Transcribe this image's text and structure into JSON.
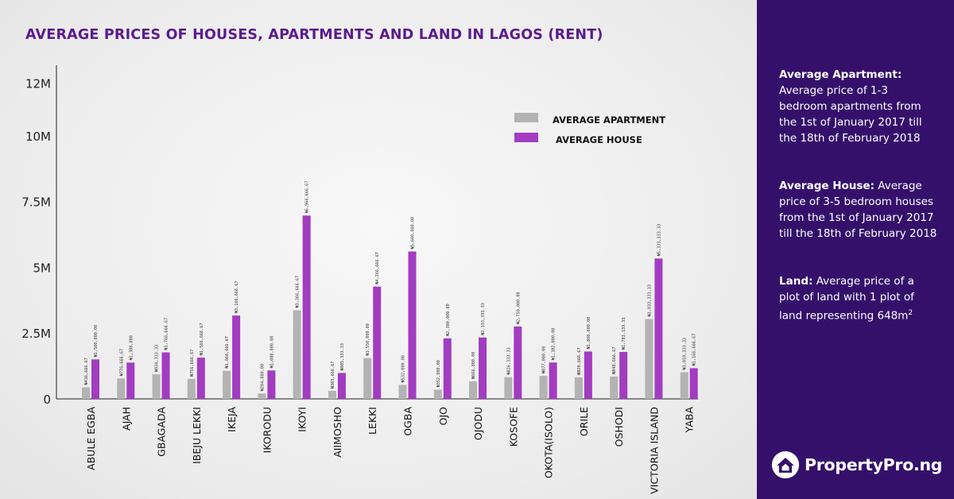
{
  "colors": {
    "apartment": "#b3b3b3",
    "house": "#a23cc0",
    "title": "#5b1b8f",
    "sidebar": "#34106b"
  },
  "chart_data": {
    "type": "bar",
    "title": "AVERAGE PRICES OF HOUSES, APARTMENTS AND LAND IN LAGOS (RENT)",
    "y_ticks": [
      "12M",
      "10M",
      "7.5M",
      "5M",
      "2.5M",
      "0"
    ],
    "ylim": [
      0,
      12500000
    ],
    "legend_position": "top-right",
    "categories": [
      "ABULE EGBA",
      "AJAH",
      "GBAGADA",
      "IBEJU LEKKI",
      "IKEJA",
      "IKORODU",
      "IKOYI",
      "AIIMOSHO",
      "LEKKI",
      "OGBA",
      "OJO",
      "OJODU",
      "KOSOFE",
      "OKOTA(ISOLO)",
      "ORILE",
      "OSHODI",
      "VICTORIA ISLAND",
      "YABA"
    ],
    "series": [
      {
        "name": "AVERAGE APARTMENT",
        "values": [
          436666.67,
          776666.67,
          934333.33,
          756666.67,
          1066666.67,
          204000,
          3366666.67,
          303666.67,
          1550000,
          532000,
          352000,
          666000,
          826333.33,
          877000,
          820666.67,
          848666.67,
          3033333.33,
          1010333.33
        ],
        "labels": [
          "₦436,666.67",
          "₦776,666.67",
          "₦934,333.33",
          "₦756,666.67",
          "₦1,066,666.67",
          "₦204,000.00",
          "₦3,366,666.67",
          "₦303,666.67",
          "₦1,550,000.00",
          "₦532,000.00",
          "₦352,000.00",
          "₦666,000.00",
          "₦826,333.33",
          "₦877,000.00",
          "₦820,666.67",
          "₦848,666.67",
          "₦3,033,333.33",
          "₦1,010,333.33"
        ]
      },
      {
        "name": "AVERAGE HOUSE",
        "values": [
          1500000,
          1380000,
          1766666.67,
          1566666.67,
          3166666.67,
          1080000,
          6966666.67,
          985333.33,
          4266666.67,
          5600000,
          2300000,
          2333333.33,
          2750000,
          1382000,
          1800000,
          1783333.33,
          5333333.33,
          1166666.67
        ],
        "labels": [
          "₦1,500,000.00",
          "₦1,380,000",
          "₦1,766,666.67",
          "₦1,566,666.67",
          "₦3,166,666.67",
          "₦1,080,000.00",
          "₦6,966,666.67",
          "₦985,333.33",
          "₦4,266,666.67",
          "₦5,600,000.00",
          "₦2,300,000.00",
          "₦2,333,333.33",
          "₦2,750,000.00",
          "₦1,382,000.00",
          "₦1,800,000.00",
          "₦1,783,333.33",
          "₦5,333,333.33",
          "₦1,166,666.67"
        ]
      }
    ]
  },
  "sidebar": {
    "apartment_heading": "Average Apartment:",
    "apartment_text": "Average price of 1-3 bedroom apartments from the 1st of January 2017 till the 18th of February 2018",
    "house_heading": "Average House:",
    "house_text": "Average price of  3-5 bedroom houses from the 1st of January 2017 till the 18th of February 2018",
    "land_heading": "Land:",
    "land_text": "Average price of a plot of land with 1 plot of land representing 648m",
    "land_superscript": "2"
  },
  "brand": {
    "name": "PropertyPro.ng",
    "logo_icon": "house-logo-icon"
  }
}
